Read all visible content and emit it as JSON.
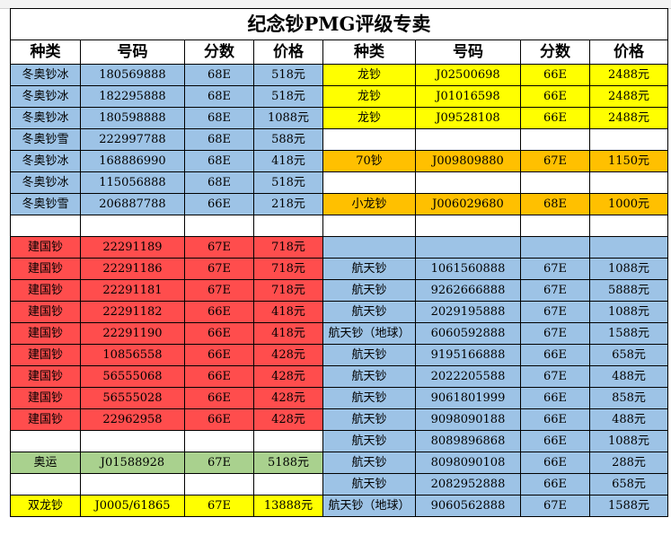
{
  "title": "纪念钞PMG评级专卖",
  "headers": [
    "种类",
    "号码",
    "分数",
    "价格",
    "种类",
    "号码",
    "分数",
    "价格"
  ],
  "rows": [
    {
      "cells": [
        "冬奥钞冰",
        "180569888",
        "68E",
        "518元",
        "龙钞",
        "J02500698",
        "66E",
        "2488元"
      ],
      "colors": [
        "#9dc3e6",
        "#9dc3e6",
        "#9dc3e6",
        "#9dc3e6",
        "#ffff00",
        "#ffff00",
        "#ffff00",
        "#ffff00"
      ]
    },
    {
      "cells": [
        "冬奥钞冰",
        "182295888",
        "68E",
        "518元",
        "龙钞",
        "J01016598",
        "66E",
        "2488元"
      ],
      "colors": [
        "#9dc3e6",
        "#9dc3e6",
        "#9dc3e6",
        "#9dc3e6",
        "#ffff00",
        "#ffff00",
        "#ffff00",
        "#ffff00"
      ]
    },
    {
      "cells": [
        "冬奥钞冰",
        "180598888",
        "68E",
        "1088元",
        "龙钞",
        "J09528108",
        "66E",
        "2488元"
      ],
      "colors": [
        "#9dc3e6",
        "#9dc3e6",
        "#9dc3e6",
        "#9dc3e6",
        "#ffff00",
        "#ffff00",
        "#ffff00",
        "#ffff00"
      ]
    },
    {
      "cells": [
        "冬奥钞雪",
        "222997788",
        "68E",
        "588元",
        "",
        "",
        "",
        ""
      ],
      "colors": [
        "#9dc3e6",
        "#9dc3e6",
        "#9dc3e6",
        "#9dc3e6",
        "#ffffff",
        "#ffffff",
        "#ffffff",
        "#ffffff"
      ]
    },
    {
      "cells": [
        "冬奥钞冰",
        "168886990",
        "68E",
        "418元",
        "70钞",
        "J009809880",
        "67E",
        "1150元"
      ],
      "colors": [
        "#9dc3e6",
        "#9dc3e6",
        "#9dc3e6",
        "#9dc3e6",
        "#ffc000",
        "#ffc000",
        "#ffc000",
        "#ffc000"
      ]
    },
    {
      "cells": [
        "冬奥钞冰",
        "115056888",
        "68E",
        "518元",
        "",
        "",
        "",
        ""
      ],
      "colors": [
        "#9dc3e6",
        "#9dc3e6",
        "#9dc3e6",
        "#9dc3e6",
        "#ffffff",
        "#ffffff",
        "#ffffff",
        "#ffffff"
      ]
    },
    {
      "cells": [
        "冬奥钞雪",
        "206887788",
        "66E",
        "218元",
        "小龙钞",
        "J006029680",
        "68E",
        "1000元"
      ],
      "colors": [
        "#9dc3e6",
        "#9dc3e6",
        "#9dc3e6",
        "#9dc3e6",
        "#ffc000",
        "#ffc000",
        "#ffc000",
        "#ffc000"
      ]
    },
    {
      "cells": [
        "",
        "",
        "",
        "",
        "",
        "",
        "",
        ""
      ],
      "colors": [
        "#ffffff",
        "#ffffff",
        "#ffffff",
        "#ffffff",
        "#ffffff",
        "#ffffff",
        "#ffffff",
        "#ffffff"
      ]
    },
    {
      "cells": [
        "建国钞",
        "22291189",
        "67E",
        "718元",
        "",
        "",
        "",
        ""
      ],
      "colors": [
        "#ff4d4d",
        "#ff4d4d",
        "#ff4d4d",
        "#ff4d4d",
        "#9dc3e6",
        "#9dc3e6",
        "#9dc3e6",
        "#9dc3e6"
      ]
    },
    {
      "cells": [
        "建国钞",
        "22291186",
        "67E",
        "718元",
        "航天钞",
        "1061560888",
        "67E",
        "1088元"
      ],
      "colors": [
        "#ff4d4d",
        "#ff4d4d",
        "#ff4d4d",
        "#ff4d4d",
        "#9dc3e6",
        "#9dc3e6",
        "#9dc3e6",
        "#9dc3e6"
      ]
    },
    {
      "cells": [
        "建国钞",
        "22291181",
        "67E",
        "718元",
        "航天钞",
        "9262666888",
        "67E",
        "5888元"
      ],
      "colors": [
        "#ff4d4d",
        "#ff4d4d",
        "#ff4d4d",
        "#ff4d4d",
        "#9dc3e6",
        "#9dc3e6",
        "#9dc3e6",
        "#9dc3e6"
      ]
    },
    {
      "cells": [
        "建国钞",
        "22291182",
        "66E",
        "418元",
        "航天钞",
        "2029195888",
        "67E",
        "1088元"
      ],
      "colors": [
        "#ff4d4d",
        "#ff4d4d",
        "#ff4d4d",
        "#ff4d4d",
        "#9dc3e6",
        "#9dc3e6",
        "#9dc3e6",
        "#9dc3e6"
      ]
    },
    {
      "cells": [
        "建国钞",
        "22291190",
        "66E",
        "418元",
        "航天钞（地球）",
        "6060592888",
        "67E",
        "1588元"
      ],
      "colors": [
        "#ff4d4d",
        "#ff4d4d",
        "#ff4d4d",
        "#ff4d4d",
        "#9dc3e6",
        "#9dc3e6",
        "#9dc3e6",
        "#9dc3e6"
      ]
    },
    {
      "cells": [
        "建国钞",
        "10856558",
        "66E",
        "428元",
        "航天钞",
        "9195166888",
        "66E",
        "658元"
      ],
      "colors": [
        "#ff4d4d",
        "#ff4d4d",
        "#ff4d4d",
        "#ff4d4d",
        "#9dc3e6",
        "#9dc3e6",
        "#9dc3e6",
        "#9dc3e6"
      ]
    },
    {
      "cells": [
        "建国钞",
        "56555068",
        "66E",
        "428元",
        "航天钞",
        "2022205588",
        "67E",
        "488元"
      ],
      "colors": [
        "#ff4d4d",
        "#ff4d4d",
        "#ff4d4d",
        "#ff4d4d",
        "#9dc3e6",
        "#9dc3e6",
        "#9dc3e6",
        "#9dc3e6"
      ]
    },
    {
      "cells": [
        "建国钞",
        "56555028",
        "66E",
        "428元",
        "航天钞",
        "9061801999",
        "66E",
        "858元"
      ],
      "colors": [
        "#ff4d4d",
        "#ff4d4d",
        "#ff4d4d",
        "#ff4d4d",
        "#9dc3e6",
        "#9dc3e6",
        "#9dc3e6",
        "#9dc3e6"
      ]
    },
    {
      "cells": [
        "建国钞",
        "22962958",
        "66E",
        "428元",
        "航天钞",
        "9098090188",
        "66E",
        "488元"
      ],
      "colors": [
        "#ff4d4d",
        "#ff4d4d",
        "#ff4d4d",
        "#ff4d4d",
        "#9dc3e6",
        "#9dc3e6",
        "#9dc3e6",
        "#9dc3e6"
      ]
    },
    {
      "cells": [
        "",
        "",
        "",
        "",
        "航天钞",
        "8089896868",
        "66E",
        "1088元"
      ],
      "colors": [
        "#ffffff",
        "#ffffff",
        "#ffffff",
        "#ffffff",
        "#9dc3e6",
        "#9dc3e6",
        "#9dc3e6",
        "#9dc3e6"
      ]
    },
    {
      "cells": [
        "奥运",
        "J01588928",
        "67E",
        "5188元",
        "航天钞",
        "8098090108",
        "66E",
        "288元"
      ],
      "colors": [
        "#a9d18e",
        "#a9d18e",
        "#a9d18e",
        "#a9d18e",
        "#9dc3e6",
        "#9dc3e6",
        "#9dc3e6",
        "#9dc3e6"
      ]
    },
    {
      "cells": [
        "",
        "",
        "",
        "",
        "航天钞",
        "2082952888",
        "66E",
        "658元"
      ],
      "colors": [
        "#ffffff",
        "#ffffff",
        "#ffffff",
        "#ffffff",
        "#9dc3e6",
        "#9dc3e6",
        "#9dc3e6",
        "#9dc3e6"
      ]
    },
    {
      "cells": [
        "双龙钞",
        "J0005/61865",
        "67E",
        "13888元",
        "航天钞（地球）",
        "9060562888",
        "67E",
        "1588元"
      ],
      "colors": [
        "#ffff00",
        "#ffff00",
        "#ffff00",
        "#ffff00",
        "#9dc3e6",
        "#9dc3e6",
        "#9dc3e6",
        "#9dc3e6"
      ]
    }
  ]
}
